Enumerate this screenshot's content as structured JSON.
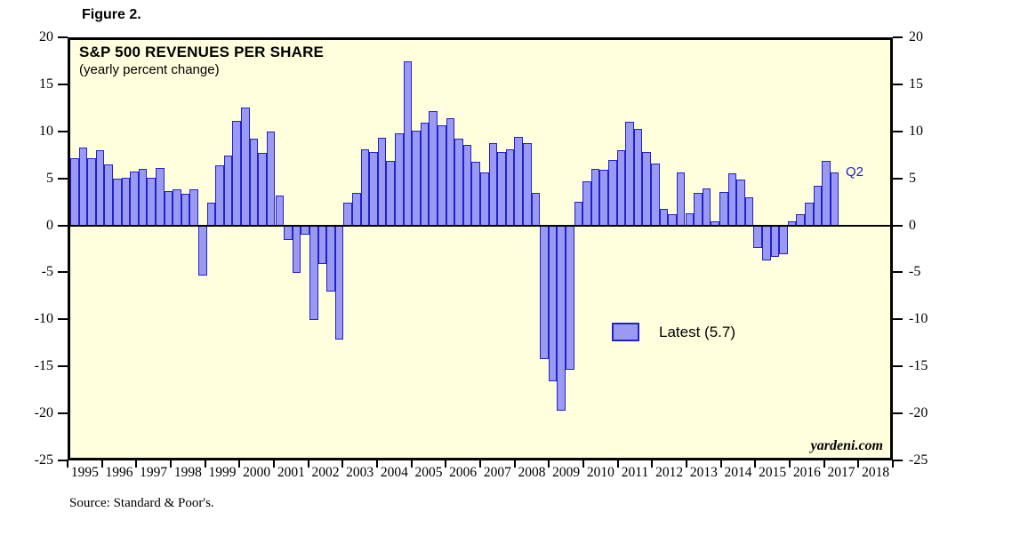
{
  "figure_label": "Figure 2.",
  "chart_title": "S&P 500 REVENUES PER SHARE",
  "chart_subtitle": "(yearly percent change)",
  "watermark": "yardeni.com",
  "source_note": "Source: Standard & Poor's.",
  "legend": {
    "label": "Latest (5.7)",
    "latest_value": 5.7
  },
  "annotation_q2": "Q2",
  "colors": {
    "plot_background": "#ffffde",
    "bar_fill": "#9a9af3",
    "bar_border": "#2121cc",
    "annotation_blue": "#2121cc",
    "axis_black": "#000000"
  },
  "chart_data": {
    "type": "bar",
    "title": "S&P 500 REVENUES PER SHARE",
    "subtitle": "(yearly percent change)",
    "ylabel": "yearly percent change",
    "ylim": [
      -25,
      20
    ],
    "yticks": [
      20,
      15,
      10,
      5,
      0,
      -5,
      -10,
      -15,
      -20,
      -25
    ],
    "grid": false,
    "legend_position": "center-right",
    "x_year_labels": [
      1995,
      1996,
      1997,
      1998,
      1999,
      2000,
      2001,
      2002,
      2003,
      2004,
      2005,
      2006,
      2007,
      2008,
      2009,
      2010,
      2011,
      2012,
      2013,
      2014,
      2015,
      2016,
      2017,
      2018
    ],
    "x_axis_slots": 96,
    "quarters": [
      "1995Q1",
      "1995Q2",
      "1995Q3",
      "1995Q4",
      "1996Q1",
      "1996Q2",
      "1996Q3",
      "1996Q4",
      "1997Q1",
      "1997Q2",
      "1997Q3",
      "1997Q4",
      "1998Q1",
      "1998Q2",
      "1998Q3",
      "1998Q4",
      "1999Q1",
      "1999Q2",
      "1999Q3",
      "1999Q4",
      "2000Q1",
      "2000Q2",
      "2000Q3",
      "2000Q4",
      "2001Q1",
      "2001Q2",
      "2001Q3",
      "2001Q4",
      "2002Q1",
      "2002Q2",
      "2002Q3",
      "2002Q4",
      "2003Q1",
      "2003Q2",
      "2003Q3",
      "2003Q4",
      "2004Q1",
      "2004Q2",
      "2004Q3",
      "2004Q4",
      "2005Q1",
      "2005Q2",
      "2005Q3",
      "2005Q4",
      "2006Q1",
      "2006Q2",
      "2006Q3",
      "2006Q4",
      "2007Q1",
      "2007Q2",
      "2007Q3",
      "2007Q4",
      "2008Q1",
      "2008Q2",
      "2008Q3",
      "2008Q4",
      "2009Q1",
      "2009Q2",
      "2009Q3",
      "2009Q4",
      "2010Q1",
      "2010Q2",
      "2010Q3",
      "2010Q4",
      "2011Q1",
      "2011Q2",
      "2011Q3",
      "2011Q4",
      "2012Q1",
      "2012Q2",
      "2012Q3",
      "2012Q4",
      "2013Q1",
      "2013Q2",
      "2013Q3",
      "2013Q4",
      "2014Q1",
      "2014Q2",
      "2014Q3",
      "2014Q4",
      "2015Q1",
      "2015Q2",
      "2015Q3",
      "2015Q4",
      "2016Q1",
      "2016Q2",
      "2016Q3",
      "2016Q4",
      "2017Q1",
      "2017Q2"
    ],
    "values": [
      7.3,
      8.4,
      7.3,
      8.1,
      6.6,
      5.1,
      5.2,
      5.8,
      6.1,
      5.2,
      6.2,
      3.7,
      3.9,
      3.4,
      3.9,
      -5.4,
      2.5,
      6.5,
      7.6,
      11.3,
      12.7,
      9.4,
      7.8,
      10.1,
      3.2,
      -1.5,
      -5.1,
      -1.0,
      -10.2,
      -4.1,
      -7.1,
      -12.3,
      2.5,
      3.5,
      8.2,
      7.9,
      9.5,
      7.0,
      9.9,
      17.7,
      10.2,
      11.1,
      12.3,
      10.8,
      11.6,
      9.4,
      8.7,
      6.9,
      5.7,
      8.9,
      7.9,
      8.2,
      9.6,
      8.9,
      3.5,
      -14.4,
      -16.8,
      -19.9,
      -15.5,
      2.6,
      4.8,
      6.1,
      6.0,
      7.1,
      8.1,
      11.2,
      10.4,
      7.9,
      6.7,
      1.8,
      1.2,
      5.7,
      1.3,
      3.5,
      4.0,
      0.5,
      3.6,
      5.6,
      5.0,
      3.1,
      -2.4,
      -3.7,
      -3.4,
      -3.1,
      0.5,
      1.2,
      2.5,
      4.3,
      7.0,
      5.7
    ]
  }
}
